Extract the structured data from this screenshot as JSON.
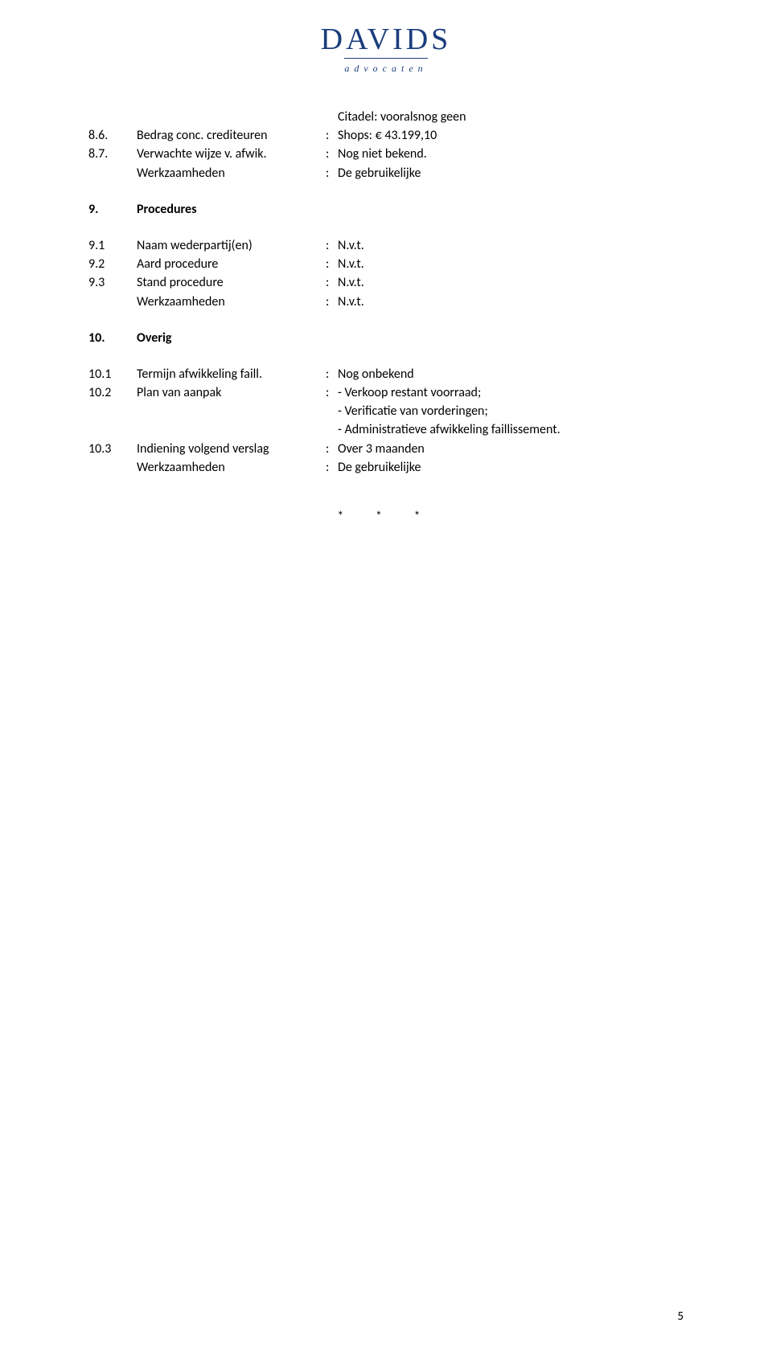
{
  "logo": {
    "main": "DAVIDS",
    "sub": "advocaten"
  },
  "lines": {
    "citadel": "Citadel:  vooralsnog geen",
    "l86_num": "8.6.",
    "l86_label": "Bedrag conc. crediteuren",
    "l86_val": "Shops:   € 43.199,10",
    "l87_num": "8.7.",
    "l87_label": "Verwachte wijze v. afwik.",
    "l87_val": "Nog niet bekend.",
    "werk_label": "Werkzaamheden",
    "werk_val": "De gebruikelijke",
    "s9_num": "9.",
    "s9_title": "Procedures",
    "l91_num": "9.1",
    "l91_label": "Naam wederpartij(en)",
    "l91_val": "N.v.t.",
    "l92_num": "9.2",
    "l92_label": "Aard procedure",
    "l92_val": "N.v.t.",
    "l93_num": "9.3",
    "l93_label": "Stand procedure",
    "l93_val": "N.v.t.",
    "l9w_val": "N.v.t.",
    "s10_num": "10.",
    "s10_title": "Overig",
    "l101_num": "10.1",
    "l101_label": "Termijn afwikkeling faill.",
    "l101_val": "Nog onbekend",
    "l102_num": "10.2",
    "l102_label": "Plan van aanpak",
    "l102_v1": "- Verkoop restant voorraad;",
    "l102_v2": "- Verificatie van vorderingen;",
    "l102_v3": "- Administratieve afwikkeling faillissement.",
    "l103_num": "10.3",
    "l103_label": "Indiening volgend verslag",
    "l103_val": "Over 3 maanden",
    "l10w_val": "De gebruikelijke"
  },
  "stars": "*   *   *",
  "page_num": "5",
  "colors": {
    "logo": "#1a3d7c",
    "text": "#000000",
    "bg": "#ffffff"
  },
  "fonts": {
    "body_size": 16,
    "logo_size": 38
  }
}
